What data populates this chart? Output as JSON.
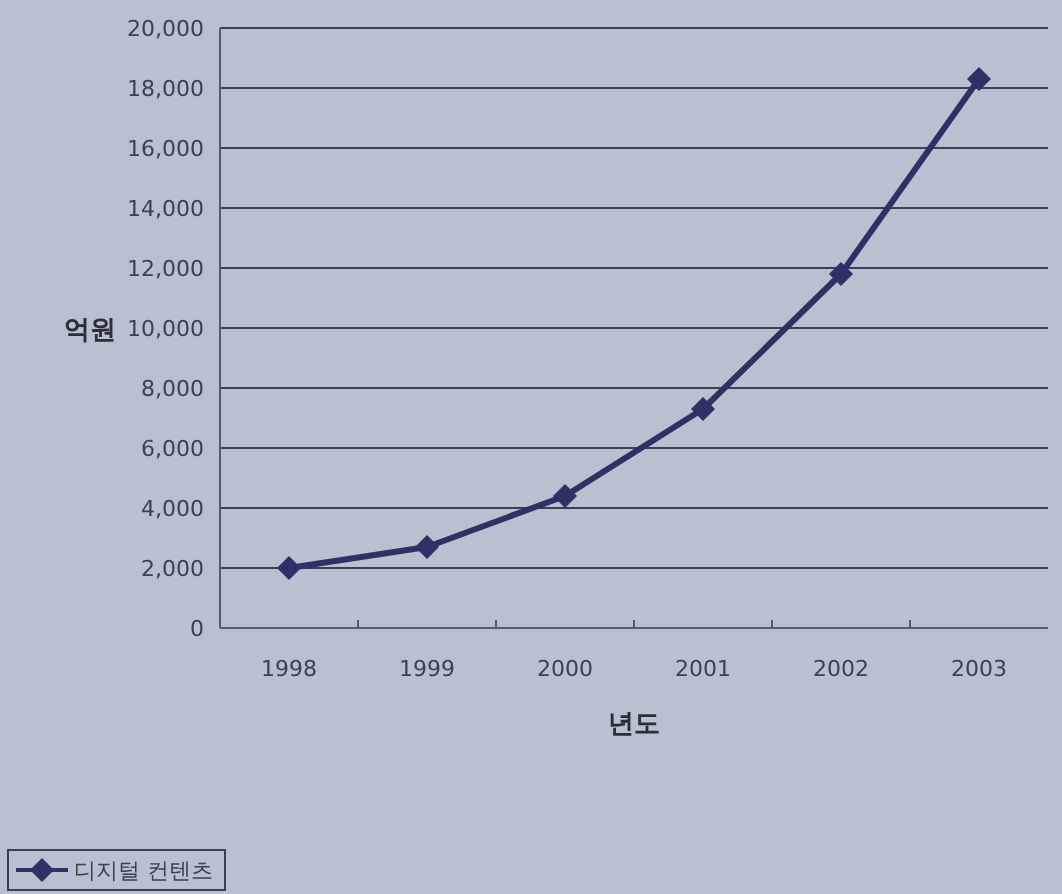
{
  "chart_data": {
    "type": "line",
    "xlabel": "년도",
    "ylabel": "억원",
    "categories": [
      "1998",
      "1999",
      "2000",
      "2001",
      "2002",
      "2003"
    ],
    "series": [
      {
        "name": "디지털 컨텐츠",
        "color": "#2e3166",
        "values": [
          2000,
          2700,
          4400,
          7300,
          11800,
          18300
        ]
      }
    ],
    "ylim": [
      0,
      20000
    ],
    "yticks": [
      0,
      {
        "value": 2000,
        "label": "2,000"
      },
      {
        "value": 4000,
        "label": "4,000"
      },
      {
        "value": 6000,
        "label": "6,000"
      },
      {
        "value": 8000,
        "label": "8,000"
      },
      {
        "value": 10000,
        "label": "10,000"
      },
      {
        "value": 12000,
        "label": "12,000"
      },
      {
        "value": 14000,
        "label": "14,000"
      },
      {
        "value": 16000,
        "label": "16,000"
      },
      {
        "value": 18000,
        "label": "18,000"
      },
      {
        "value": 20000,
        "label": "20,000"
      }
    ],
    "grid": "y",
    "legend": "bottom left",
    "marker": "diamond",
    "line_style": "solid"
  }
}
